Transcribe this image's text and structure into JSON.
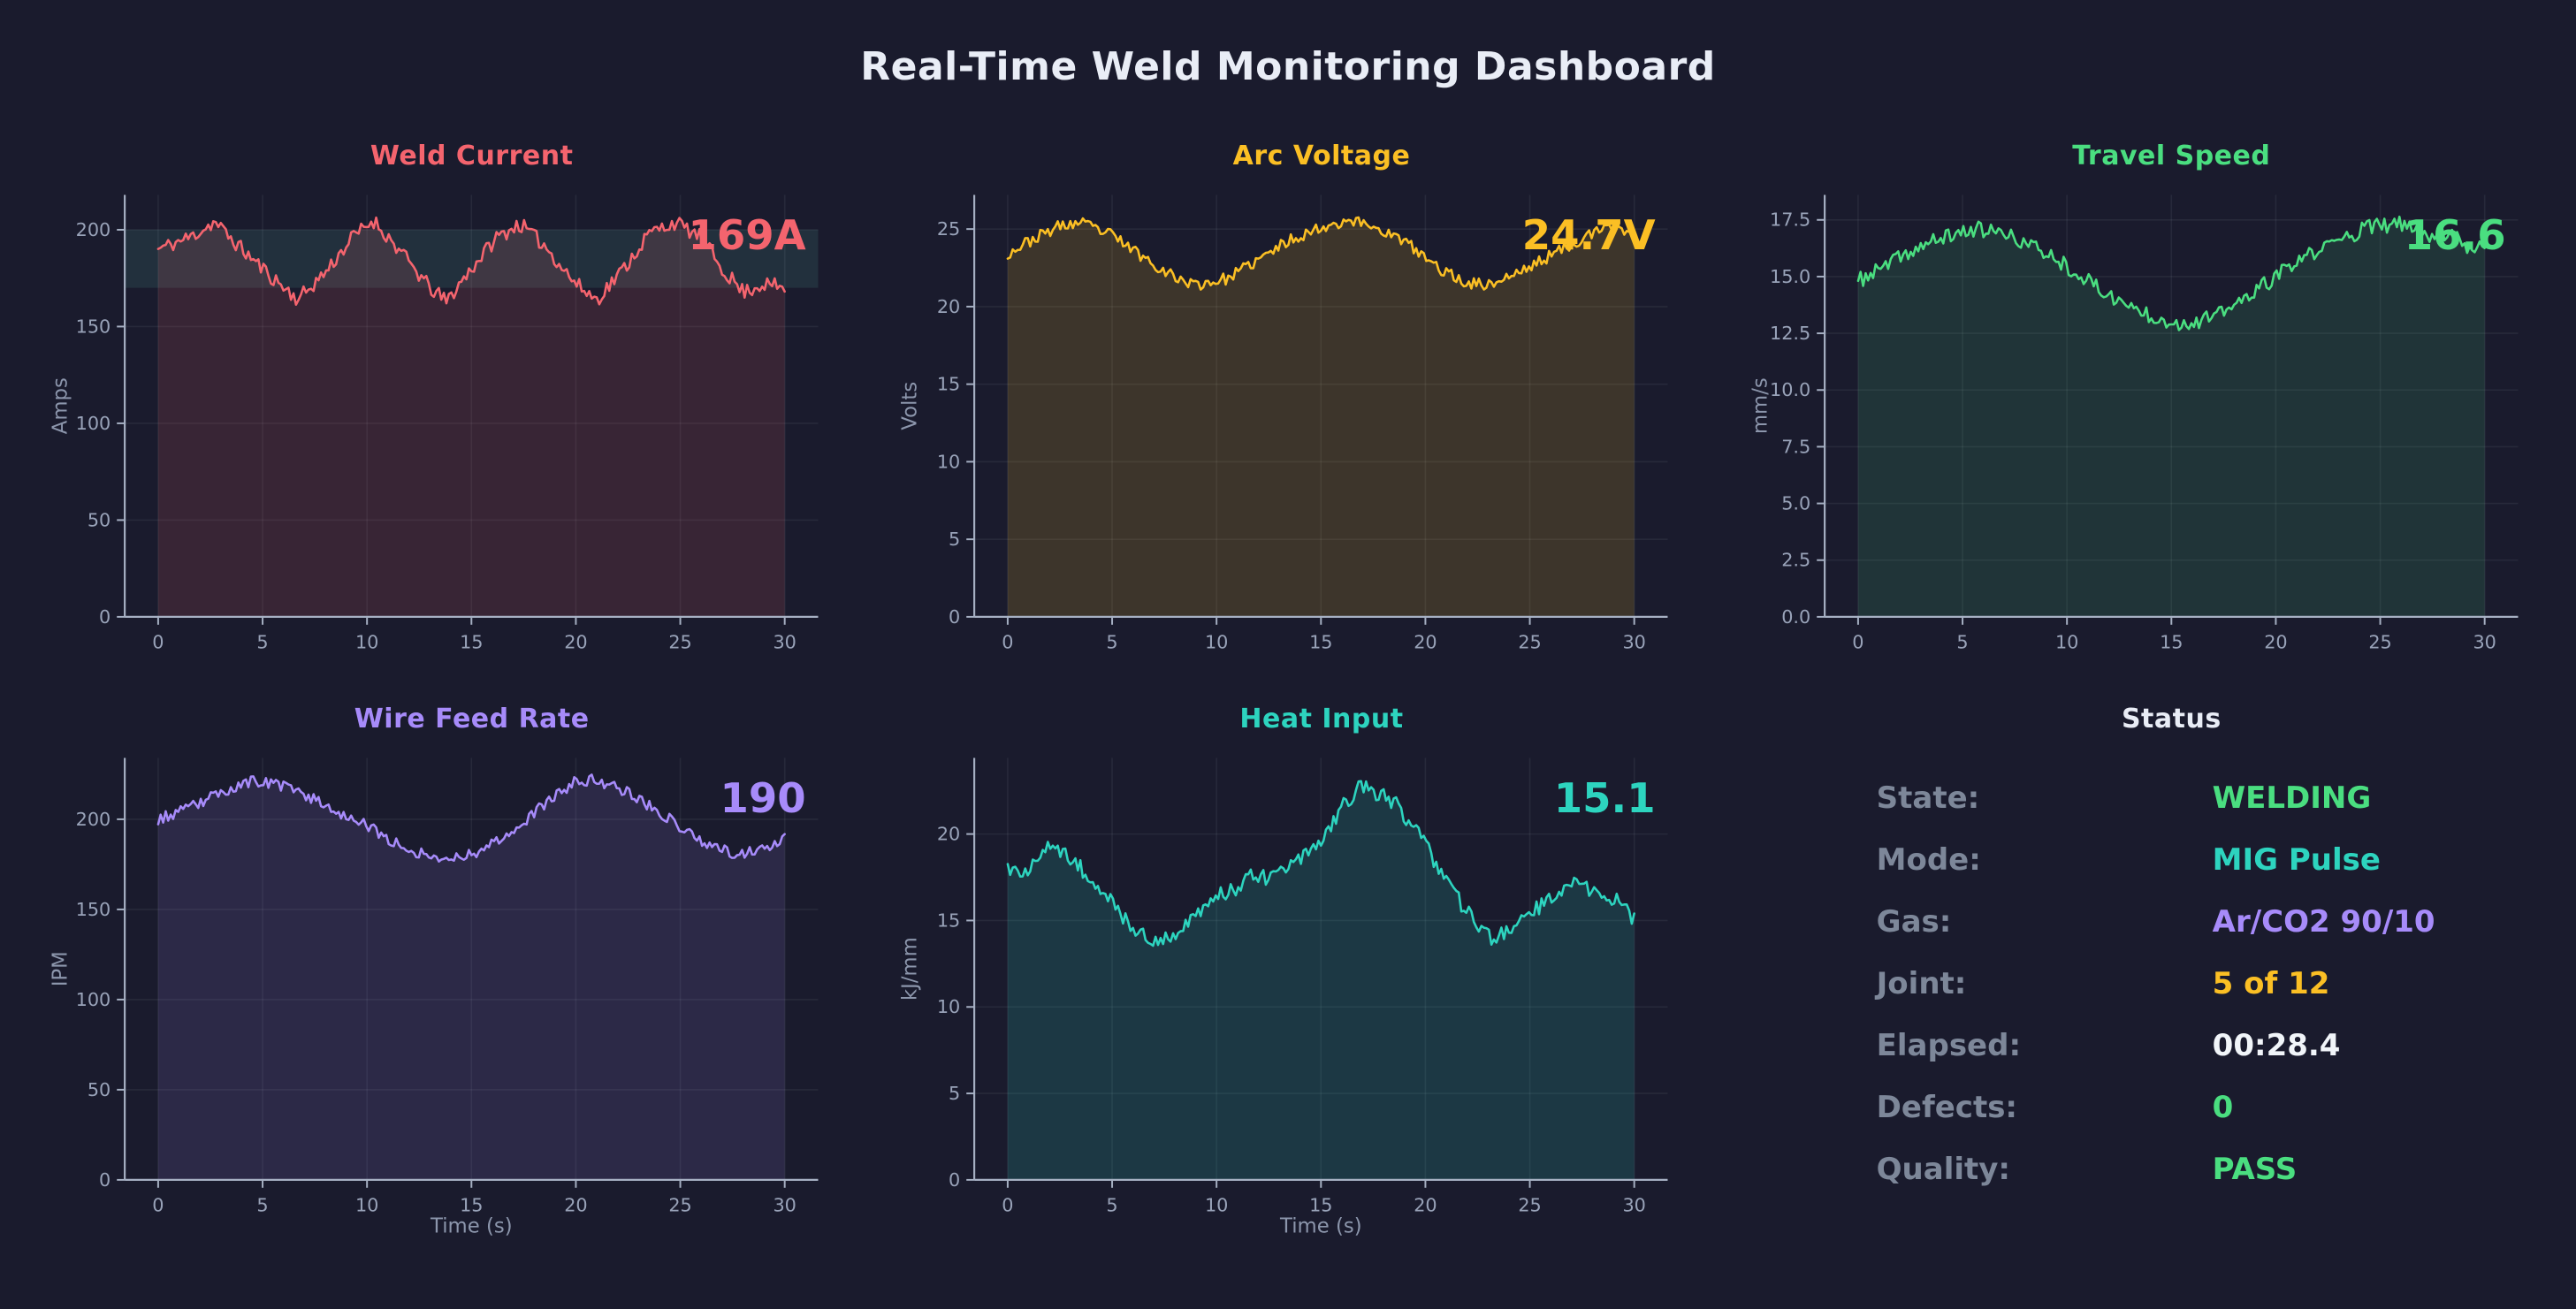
{
  "app": {
    "title": "Real-Time Weld Monitoring Dashboard"
  },
  "colors": {
    "background": "#1a1b2d",
    "title_text": "#e9edf6",
    "grid_line": "rgba(210,220,240,0.07)",
    "axis_spine": "#a6b0c3",
    "tick_label": "#99a3b9",
    "unit_label": "#8c96ac",
    "status_label": "#7d8799"
  },
  "status": {
    "title": "Status",
    "rows": [
      {
        "label": "State:",
        "value": "WELDING",
        "color": "#4ade80"
      },
      {
        "label": "Mode:",
        "value": "MIG Pulse",
        "color": "#2dd4bf"
      },
      {
        "label": "Gas:",
        "value": "Ar/CO2 90/10",
        "color": "#a78bfa"
      },
      {
        "label": "Joint:",
        "value": "5 of 12",
        "color": "#fbbf24"
      },
      {
        "label": "Elapsed:",
        "value": "00:28.4",
        "color": "#f1f5f9"
      },
      {
        "label": "Defects:",
        "value": "0",
        "color": "#4ade80"
      },
      {
        "label": "Quality:",
        "value": "PASS",
        "color": "#4ade80"
      }
    ]
  },
  "chart_data": [
    {
      "type": "line",
      "id": "weld-current",
      "title": "Weld Current",
      "ylabel": "Amps",
      "xlabel": "",
      "value_label": "169A",
      "color": "#f4646e",
      "fill": "rgba(244,96,106,0.14)",
      "xlim": [
        -1.6,
        31.6
      ],
      "ylim": [
        0,
        218
      ],
      "xticks": [
        0,
        5,
        10,
        15,
        20,
        25,
        30
      ],
      "yticks": [
        0,
        50,
        100,
        150,
        200
      ],
      "ytick_decimals": 0,
      "grid": true,
      "band": {
        "from": 170,
        "to": 200,
        "color": "rgba(110,231,210,0.10)"
      },
      "noise": 4.0,
      "seed": 11,
      "sample_step": 0.12,
      "keypoints": [
        [
          0,
          190
        ],
        [
          1.5,
          196
        ],
        [
          2.7,
          204
        ],
        [
          4,
          190
        ],
        [
          5.5,
          175
        ],
        [
          6.7,
          164
        ],
        [
          8,
          178
        ],
        [
          9.3,
          196
        ],
        [
          10.3,
          205
        ],
        [
          11.5,
          190
        ],
        [
          13,
          170
        ],
        [
          13.8,
          163
        ],
        [
          15,
          180
        ],
        [
          16.2,
          196
        ],
        [
          17.3,
          203
        ],
        [
          18.5,
          192
        ],
        [
          20,
          172
        ],
        [
          21,
          164
        ],
        [
          22.3,
          180
        ],
        [
          23.5,
          198
        ],
        [
          24.7,
          204
        ],
        [
          26,
          196
        ],
        [
          27,
          180
        ],
        [
          28,
          168
        ],
        [
          29,
          172
        ],
        [
          30,
          170
        ]
      ]
    },
    {
      "type": "line",
      "id": "arc-voltage",
      "title": "Arc Voltage",
      "ylabel": "Volts",
      "xlabel": "",
      "value_label": "24.7V",
      "color": "#fbbf24",
      "fill": "rgba(251,191,36,0.16)",
      "xlim": [
        -1.6,
        31.6
      ],
      "ylim": [
        0,
        27.2
      ],
      "xticks": [
        0,
        5,
        10,
        15,
        20,
        25,
        30
      ],
      "yticks": [
        0,
        5,
        10,
        15,
        20,
        25
      ],
      "ytick_decimals": 0,
      "grid": true,
      "band": null,
      "noise": 0.38,
      "seed": 23,
      "sample_step": 0.12,
      "keypoints": [
        [
          0,
          23.4
        ],
        [
          1,
          24.2
        ],
        [
          2.5,
          25.2
        ],
        [
          3.5,
          25.4
        ],
        [
          5,
          24.6
        ],
        [
          6.5,
          23.2
        ],
        [
          8,
          21.9
        ],
        [
          9,
          21.4
        ],
        [
          10.5,
          21.8
        ],
        [
          12,
          23.0
        ],
        [
          13.5,
          24.3
        ],
        [
          15,
          25.1
        ],
        [
          16.3,
          25.6
        ],
        [
          17.5,
          25.2
        ],
        [
          19,
          24.2
        ],
        [
          20.5,
          22.6
        ],
        [
          21.8,
          21.6
        ],
        [
          23,
          21.4
        ],
        [
          24.5,
          22.2
        ],
        [
          26,
          23.3
        ],
        [
          27.5,
          24.4
        ],
        [
          29,
          25.2
        ],
        [
          30,
          24.7
        ]
      ]
    },
    {
      "type": "line",
      "id": "travel-speed",
      "title": "Travel Speed",
      "ylabel": "mm/s",
      "xlabel": "",
      "value_label": "16.6",
      "color": "#4ade80",
      "fill": "rgba(74,222,128,0.13)",
      "xlim": [
        -1.6,
        31.6
      ],
      "ylim": [
        0,
        18.6
      ],
      "xticks": [
        0,
        5,
        10,
        15,
        20,
        25,
        30
      ],
      "yticks": [
        0,
        2.5,
        5,
        7.5,
        10,
        12.5,
        15,
        17.5
      ],
      "ytick_decimals": 1,
      "grid": true,
      "band": null,
      "noise": 0.35,
      "seed": 37,
      "sample_step": 0.12,
      "keypoints": [
        [
          0,
          14.8
        ],
        [
          1,
          15.3
        ],
        [
          2.5,
          16.1
        ],
        [
          4,
          16.7
        ],
        [
          5.5,
          17.1
        ],
        [
          6.5,
          17.0
        ],
        [
          8,
          16.5
        ],
        [
          9.5,
          15.8
        ],
        [
          11,
          14.8
        ],
        [
          12.5,
          13.9
        ],
        [
          14,
          13.3
        ],
        [
          15.5,
          12.9
        ],
        [
          17,
          13.2
        ],
        [
          18.5,
          14.0
        ],
        [
          20,
          15.0
        ],
        [
          21.5,
          15.9
        ],
        [
          23,
          16.6
        ],
        [
          24.5,
          17.2
        ],
        [
          26,
          17.3
        ],
        [
          27.5,
          16.8
        ],
        [
          28.5,
          17.0
        ],
        [
          29.5,
          16.0
        ],
        [
          30,
          16.6
        ]
      ]
    },
    {
      "type": "line",
      "id": "wire-feed-rate",
      "title": "Wire Feed Rate",
      "ylabel": "IPM",
      "xlabel": "Time (s)",
      "value_label": "190",
      "color": "#a78bfa",
      "fill": "rgba(167,139,250,0.13)",
      "xlim": [
        -1.6,
        31.6
      ],
      "ylim": [
        0,
        234
      ],
      "xticks": [
        0,
        5,
        10,
        15,
        20,
        25,
        30
      ],
      "yticks": [
        0,
        50,
        100,
        150,
        200
      ],
      "ytick_decimals": 0,
      "grid": true,
      "band": null,
      "noise": 3.2,
      "seed": 53,
      "sample_step": 0.12,
      "keypoints": [
        [
          0,
          200
        ],
        [
          1.5,
          206
        ],
        [
          3,
          215
        ],
        [
          4.5,
          221
        ],
        [
          5.5,
          220
        ],
        [
          7,
          214
        ],
        [
          8.5,
          205
        ],
        [
          10,
          196
        ],
        [
          11.5,
          186
        ],
        [
          12.8,
          180
        ],
        [
          14,
          178
        ],
        [
          15.5,
          183
        ],
        [
          17,
          194
        ],
        [
          18.5,
          208
        ],
        [
          19.8,
          220
        ],
        [
          21,
          222
        ],
        [
          22.3,
          216
        ],
        [
          23.5,
          208
        ],
        [
          25,
          196
        ],
        [
          26.3,
          186
        ],
        [
          27.5,
          181
        ],
        [
          28.5,
          182
        ],
        [
          29.3,
          186
        ],
        [
          30,
          190
        ]
      ]
    },
    {
      "type": "line",
      "id": "heat-input",
      "title": "Heat Input",
      "ylabel": "kJ/mm",
      "xlabel": "Time (s)",
      "value_label": "15.1",
      "color": "#2dd4bf",
      "fill": "rgba(45,212,191,0.16)",
      "xlim": [
        -1.6,
        31.6
      ],
      "ylim": [
        0,
        24.4
      ],
      "xticks": [
        0,
        5,
        10,
        15,
        20,
        25,
        30
      ],
      "yticks": [
        0,
        5,
        10,
        15,
        20
      ],
      "ytick_decimals": 0,
      "grid": true,
      "band": null,
      "noise": 0.5,
      "seed": 71,
      "sample_step": 0.12,
      "keypoints": [
        [
          0,
          18.0
        ],
        [
          1,
          17.8
        ],
        [
          2,
          19.2
        ],
        [
          2.8,
          19.0
        ],
        [
          4,
          17.4
        ],
        [
          5,
          16.0
        ],
        [
          6,
          14.5
        ],
        [
          7,
          13.8
        ],
        [
          8,
          14.2
        ],
        [
          9,
          15.2
        ],
        [
          10,
          16.3
        ],
        [
          11,
          17.0
        ],
        [
          11.8,
          17.6
        ],
        [
          12.8,
          17.4
        ],
        [
          13.8,
          18.4
        ],
        [
          15,
          19.6
        ],
        [
          16,
          21.6
        ],
        [
          16.8,
          22.7
        ],
        [
          17.5,
          22.5
        ],
        [
          18.5,
          21.9
        ],
        [
          19.5,
          20.3
        ],
        [
          20.5,
          18.4
        ],
        [
          21.5,
          16.4
        ],
        [
          22.3,
          14.9
        ],
        [
          23.2,
          14.0
        ],
        [
          24.2,
          14.4
        ],
        [
          25.2,
          15.5
        ],
        [
          26.2,
          16.6
        ],
        [
          27,
          17.3
        ],
        [
          27.8,
          16.8
        ],
        [
          28.5,
          16.2
        ],
        [
          29.2,
          16.4
        ],
        [
          30,
          15.1
        ]
      ]
    }
  ]
}
